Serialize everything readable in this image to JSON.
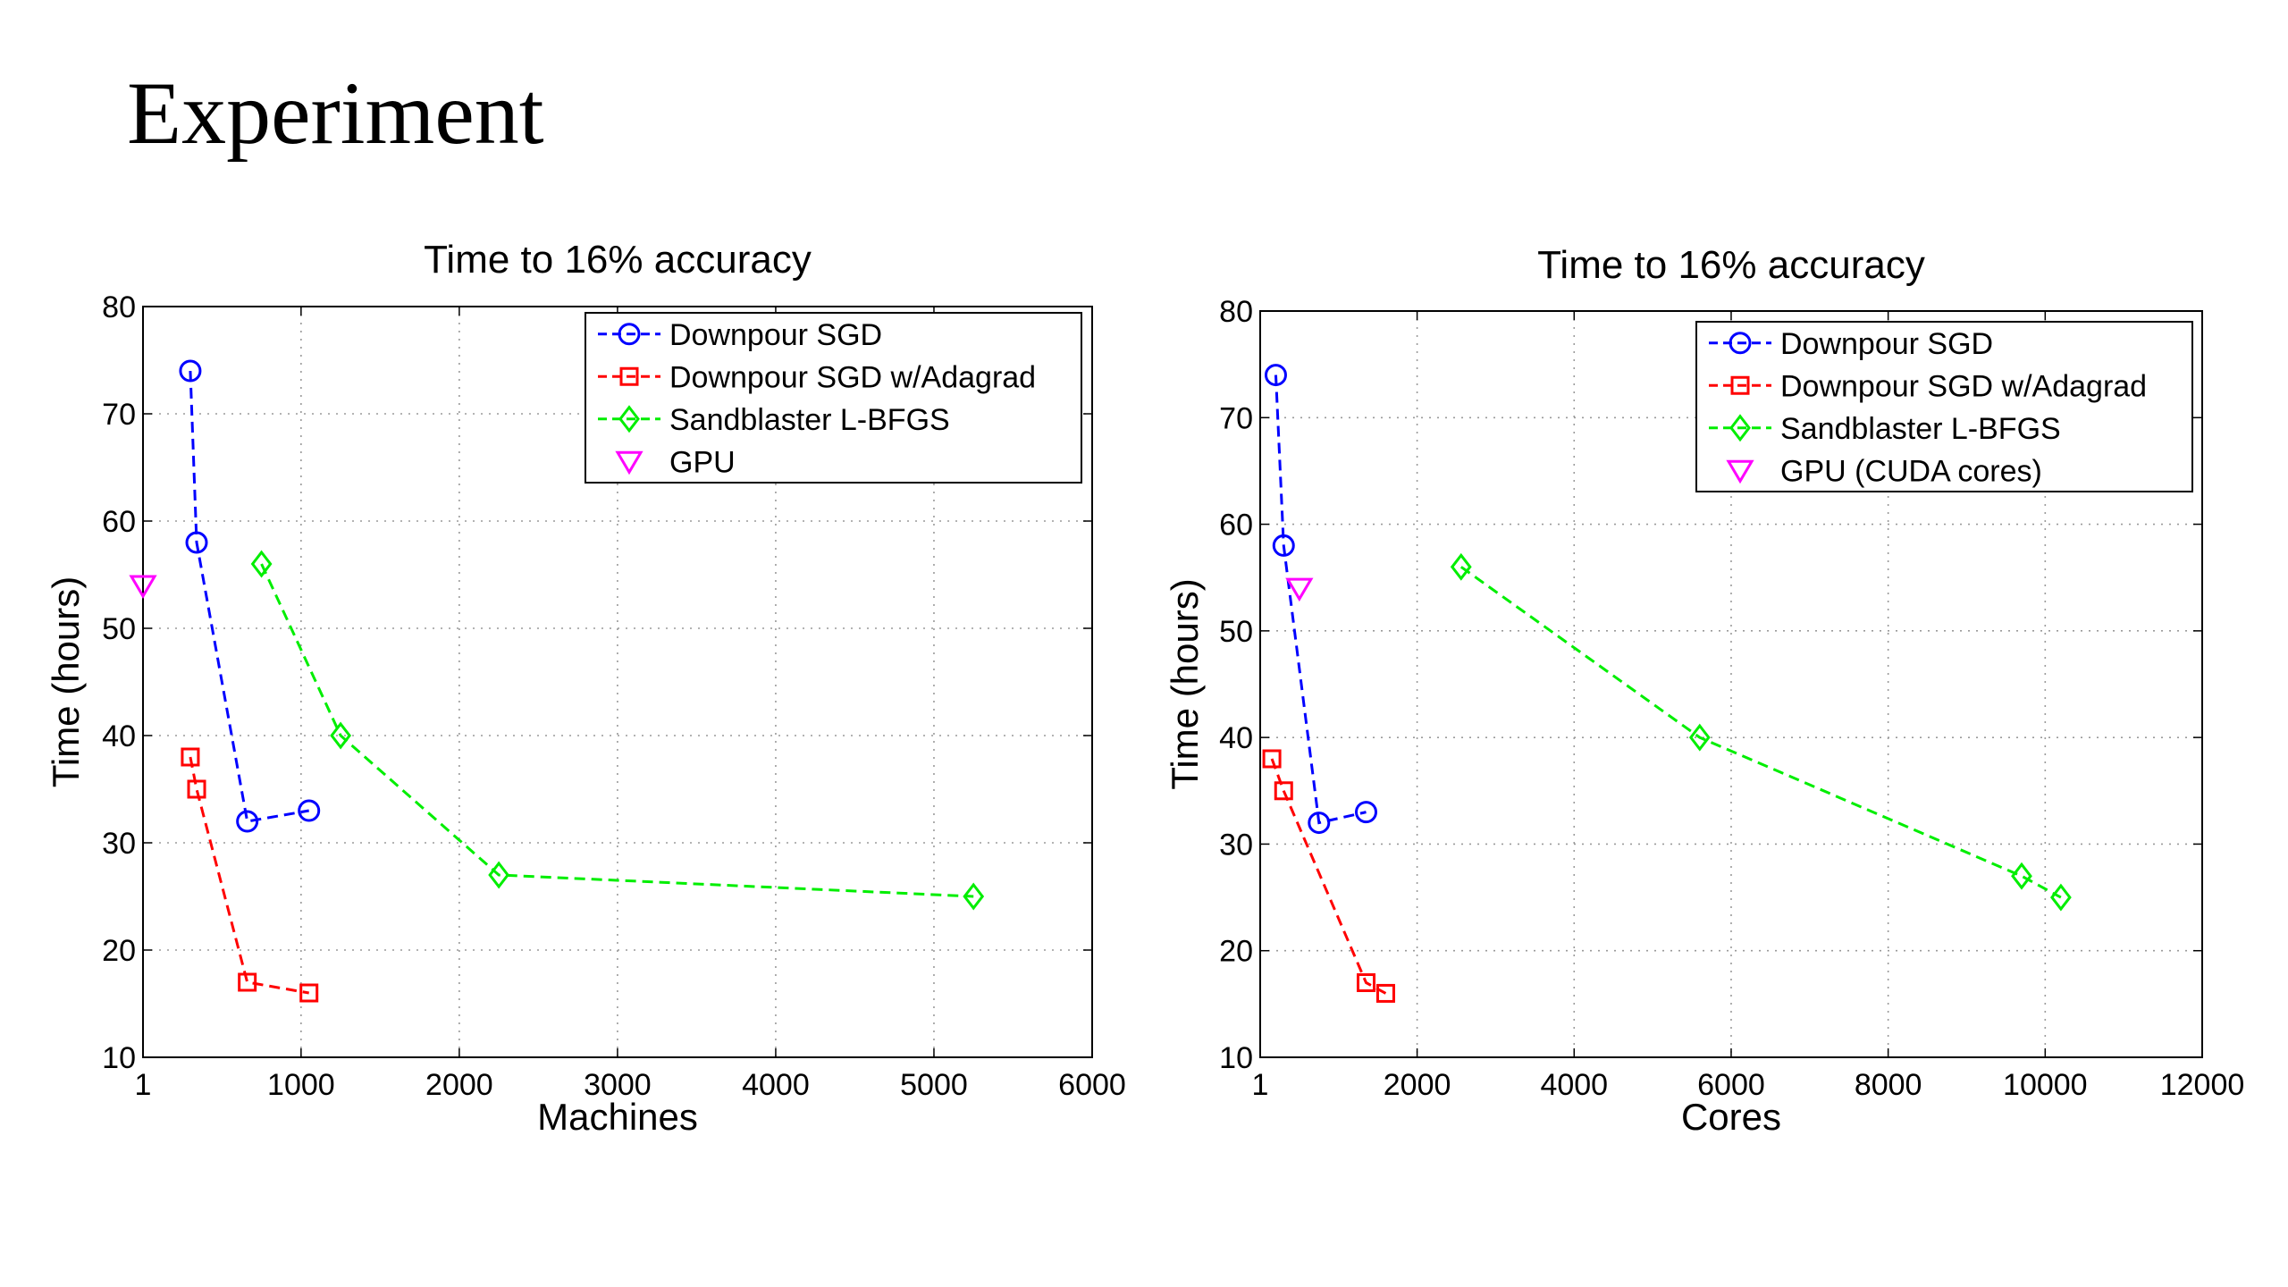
{
  "slide": {
    "title": "Experiment"
  },
  "chart_data": [
    {
      "type": "line",
      "title": "Time to 16% accuracy",
      "xlabel": "Machines",
      "ylabel": "Time (hours)",
      "xlim": [
        1,
        6000
      ],
      "ylim": [
        10,
        80
      ],
      "xticks": [
        1,
        1000,
        2000,
        3000,
        4000,
        5000,
        6000
      ],
      "yticks": [
        10,
        20,
        30,
        40,
        50,
        60,
        70,
        80
      ],
      "grid": true,
      "legend_position": "top-right",
      "series": [
        {
          "name": "Downpour SGD",
          "color": "#0000ff",
          "marker": "circle",
          "line": "dashed",
          "points": [
            [
              300,
              74
            ],
            [
              340,
              58
            ],
            [
              660,
              32
            ],
            [
              1050,
              33
            ]
          ]
        },
        {
          "name": "Downpour SGD w/Adagrad",
          "color": "#ff0000",
          "marker": "square",
          "line": "dashed",
          "points": [
            [
              300,
              38
            ],
            [
              340,
              35
            ],
            [
              660,
              17
            ],
            [
              1050,
              16
            ]
          ]
        },
        {
          "name": "Sandblaster L-BFGS",
          "color": "#00ee00",
          "marker": "diamond",
          "line": "dashed",
          "points": [
            [
              750,
              56
            ],
            [
              1250,
              40
            ],
            [
              2250,
              27
            ],
            [
              5250,
              25
            ]
          ]
        },
        {
          "name": "GPU",
          "color": "#ff00ff",
          "marker": "triangle-down",
          "line": "none",
          "points": [
            [
              1,
              54
            ]
          ]
        }
      ]
    },
    {
      "type": "line",
      "title": "Time to 16% accuracy",
      "xlabel": "Cores",
      "ylabel": "Time (hours)",
      "xlim": [
        1,
        12000
      ],
      "ylim": [
        10,
        80
      ],
      "xticks": [
        1,
        2000,
        4000,
        6000,
        8000,
        10000,
        12000
      ],
      "yticks": [
        10,
        20,
        30,
        40,
        50,
        60,
        70,
        80
      ],
      "grid": true,
      "legend_position": "top-right",
      "series": [
        {
          "name": "Downpour SGD",
          "color": "#0000ff",
          "marker": "circle",
          "line": "dashed",
          "points": [
            [
              200,
              74
            ],
            [
              300,
              58
            ],
            [
              750,
              32
            ],
            [
              1350,
              33
            ]
          ]
        },
        {
          "name": "Downpour SGD w/Adagrad",
          "color": "#ff0000",
          "marker": "square",
          "line": "dashed",
          "points": [
            [
              150,
              38
            ],
            [
              300,
              35
            ],
            [
              1350,
              17
            ],
            [
              1600,
              16
            ]
          ]
        },
        {
          "name": "Sandblaster L-BFGS",
          "color": "#00ee00",
          "marker": "diamond",
          "line": "dashed",
          "points": [
            [
              2560,
              56
            ],
            [
              5600,
              40
            ],
            [
              9700,
              27
            ],
            [
              10200,
              25
            ]
          ]
        },
        {
          "name": "GPU (CUDA cores)",
          "color": "#ff00ff",
          "marker": "triangle-down",
          "line": "none",
          "points": [
            [
              500,
              54
            ]
          ]
        }
      ]
    }
  ]
}
